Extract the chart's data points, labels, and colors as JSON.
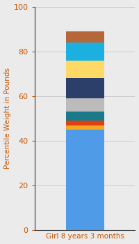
{
  "category": "Girl 8 years 3 months",
  "segments": [
    {
      "value": 45,
      "color": "#4F9BE8"
    },
    {
      "value": 2,
      "color": "#F5A623"
    },
    {
      "value": 2,
      "color": "#E04010"
    },
    {
      "value": 4,
      "color": "#1A7A8A"
    },
    {
      "value": 6,
      "color": "#BBBBBB"
    },
    {
      "value": 9,
      "color": "#2B3F6A"
    },
    {
      "value": 8,
      "color": "#FFD966"
    },
    {
      "value": 8,
      "color": "#1BB0E0"
    },
    {
      "value": 5,
      "color": "#B5673A"
    }
  ],
  "ylim": [
    0,
    100
  ],
  "yticks": [
    0,
    20,
    40,
    60,
    80,
    100
  ],
  "ylabel": "Percentile Weight in Pounds",
  "ylabel_color": "#CC5500",
  "tick_color": "#CC5500",
  "xlabel_color": "#CC5500",
  "background_color": "#EBEBEB",
  "bar_width": 0.38,
  "figsize": [
    2.0,
    3.5
  ],
  "dpi": 100
}
